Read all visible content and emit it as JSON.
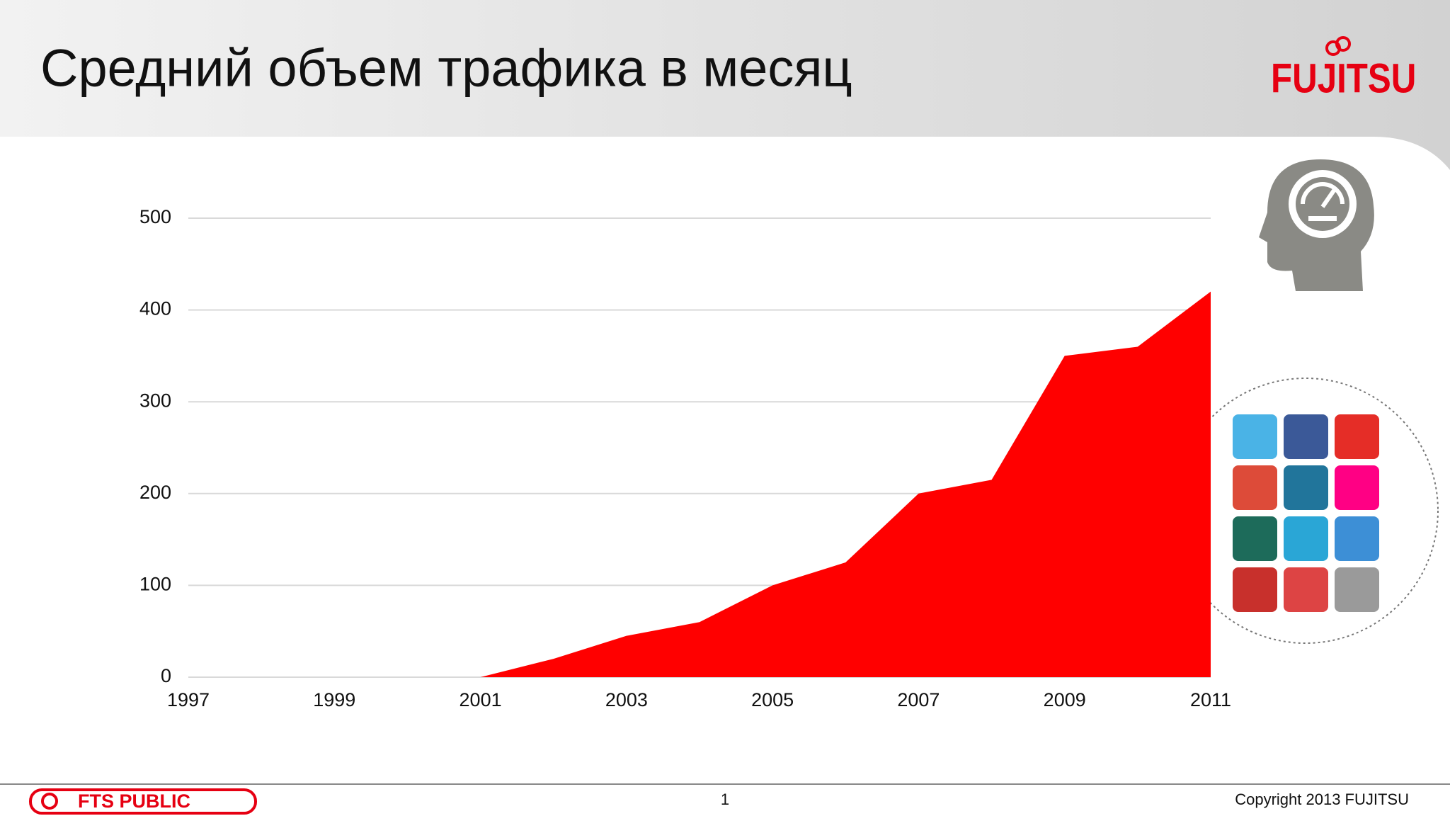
{
  "header": {
    "title": "Средний объем трафика в месяц",
    "logo": "FUJITSU"
  },
  "chart_data": {
    "type": "area",
    "x": [
      1997,
      1998,
      1999,
      2000,
      2001,
      2002,
      2003,
      2004,
      2005,
      2006,
      2007,
      2008,
      2009,
      2010,
      2011
    ],
    "values": [
      0,
      0,
      0,
      0,
      0,
      20,
      45,
      60,
      100,
      125,
      200,
      215,
      350,
      360,
      420
    ],
    "color": "#ff0000",
    "xlim": [
      1997,
      2011
    ],
    "xticks": [
      1997,
      1999,
      2001,
      2003,
      2005,
      2007,
      2009,
      2011
    ],
    "ylim": [
      0,
      500
    ],
    "yticks": [
      0,
      100,
      200,
      300,
      400,
      500
    ],
    "grid": true
  },
  "footer": {
    "classification": "FTS PUBLIC",
    "page": "1",
    "copyright": "Copyright 2013 FUJITSU"
  }
}
